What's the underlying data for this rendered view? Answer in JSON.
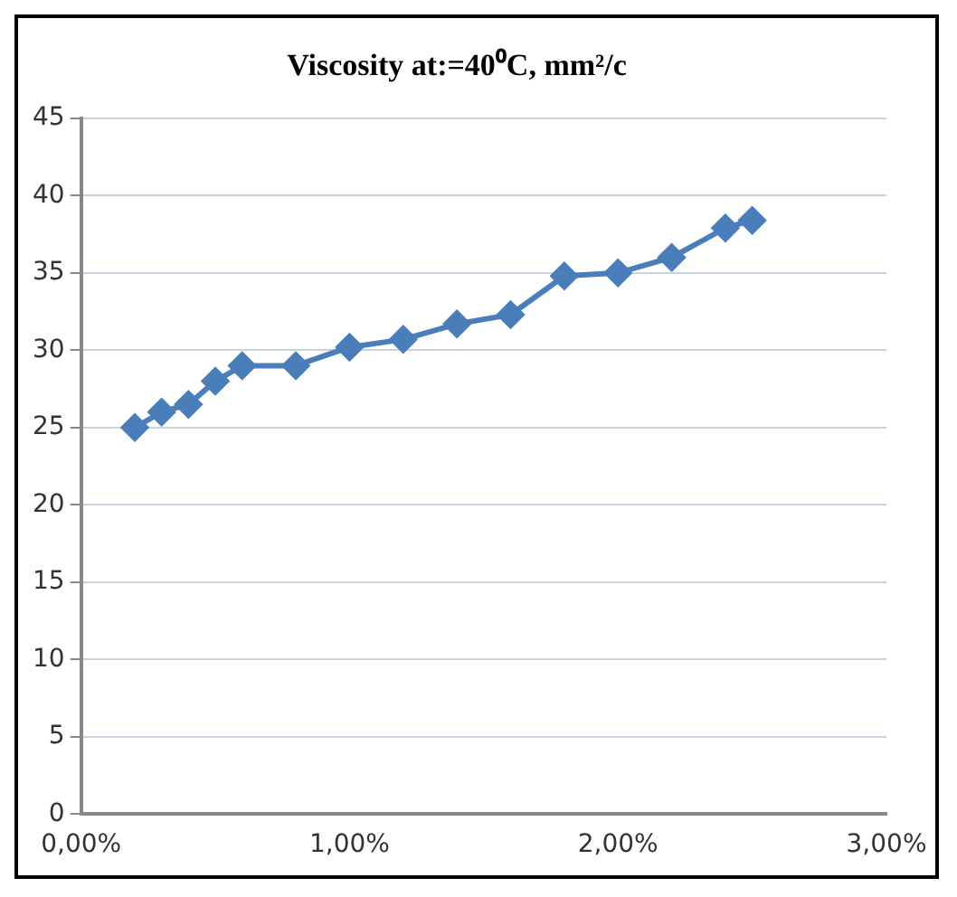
{
  "chart_data": {
    "type": "line",
    "title": "Viscosity at:=40⁰C, mm²/c",
    "x": [
      0.2,
      0.3,
      0.4,
      0.5,
      0.6,
      0.8,
      1.0,
      1.2,
      1.4,
      1.6,
      1.8,
      2.0,
      2.2,
      2.4,
      2.5
    ],
    "series": [
      {
        "color": "#4a7ebb",
        "values": [
          25,
          26,
          26.5,
          28,
          29,
          29,
          30.2,
          30.7,
          31.7,
          32.3,
          34.8,
          35,
          36,
          37.9,
          38.4
        ]
      }
    ],
    "xlim": [
      0,
      3
    ],
    "xticks": [
      {
        "value": 0,
        "label": "0,00%"
      },
      {
        "value": 1,
        "label": "1,00%"
      },
      {
        "value": 2,
        "label": "2,00%"
      },
      {
        "value": 3,
        "label": "3,00%"
      }
    ],
    "ylim": [
      0,
      45
    ],
    "yticks": [
      0,
      5,
      10,
      15,
      20,
      25,
      30,
      35,
      40,
      45
    ],
    "grid": "y",
    "marker": "diamond",
    "line_style": "solid",
    "legend": false
  }
}
